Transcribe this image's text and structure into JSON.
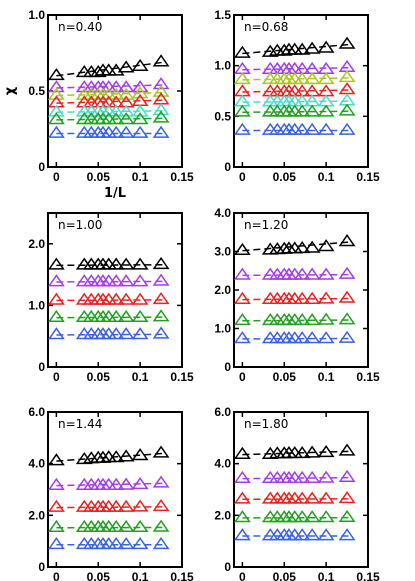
{
  "figure": {
    "colors": {
      "black": "#000000",
      "purple": "#a23cf0",
      "yellowgreen": "#a8c81e",
      "red": "#ee2020",
      "cyan": "#40e0c8",
      "green": "#22a020",
      "blue": "#3a62e6"
    }
  },
  "chart_data": [
    {
      "type": "scatter",
      "annotation": "n=0.40",
      "xlabel": "1/L",
      "ylabel": "χ",
      "xlim": [
        -0.01,
        0.15
      ],
      "ylim": [
        0,
        1.0
      ],
      "xticks": [
        0,
        0.05,
        0.1,
        0.15
      ],
      "xtick_labels": [
        "0",
        "0.05",
        "0.1",
        "0.15"
      ],
      "yticks": [
        0,
        0.5,
        1.0
      ],
      "ytick_labels": [
        "0",
        "0.5",
        "1.0"
      ],
      "x": [
        0.0,
        0.0333,
        0.0417,
        0.05,
        0.0556,
        0.0625,
        0.0714,
        0.0833,
        0.1,
        0.125
      ],
      "series": [
        {
          "color": "black",
          "values": [
            0.6,
            0.62,
            0.62,
            0.62,
            0.63,
            0.63,
            0.63,
            0.65,
            0.66,
            0.69
          ]
        },
        {
          "color": "purple",
          "values": [
            0.52,
            0.52,
            0.52,
            0.52,
            0.52,
            0.52,
            0.52,
            0.52,
            0.52,
            0.54
          ]
        },
        {
          "color": "yellowgreen",
          "values": [
            0.47,
            0.47,
            0.47,
            0.47,
            0.47,
            0.47,
            0.47,
            0.47,
            0.48,
            0.49
          ]
        },
        {
          "color": "red",
          "values": [
            0.42,
            0.42,
            0.42,
            0.42,
            0.42,
            0.42,
            0.42,
            0.42,
            0.43,
            0.44
          ]
        },
        {
          "color": "cyan",
          "values": [
            0.36,
            0.36,
            0.36,
            0.36,
            0.36,
            0.36,
            0.36,
            0.36,
            0.36,
            0.37
          ]
        },
        {
          "color": "green",
          "values": [
            0.31,
            0.31,
            0.31,
            0.31,
            0.31,
            0.31,
            0.31,
            0.31,
            0.31,
            0.32
          ]
        },
        {
          "color": "blue",
          "values": [
            0.22,
            0.22,
            0.22,
            0.22,
            0.22,
            0.22,
            0.22,
            0.22,
            0.22,
            0.22
          ]
        }
      ]
    },
    {
      "type": "scatter",
      "annotation": "n=0.68",
      "xlabel": "",
      "ylabel": "",
      "xlim": [
        -0.01,
        0.15
      ],
      "ylim": [
        0,
        1.5
      ],
      "xticks": [
        0,
        0.05,
        0.1,
        0.15
      ],
      "xtick_labels": [
        "0",
        "0.05",
        "0.1",
        "0.15"
      ],
      "yticks": [
        0,
        0.5,
        1.0,
        1.5
      ],
      "ytick_labels": [
        "0",
        "0.5",
        "1.0",
        "1.5"
      ],
      "x": [
        0.0,
        0.0333,
        0.0417,
        0.05,
        0.0556,
        0.0625,
        0.0714,
        0.0833,
        0.1,
        0.125
      ],
      "series": [
        {
          "color": "black",
          "values": [
            1.12,
            1.13,
            1.14,
            1.14,
            1.15,
            1.15,
            1.15,
            1.16,
            1.17,
            1.21
          ]
        },
        {
          "color": "purple",
          "values": [
            0.96,
            0.96,
            0.96,
            0.96,
            0.96,
            0.96,
            0.96,
            0.96,
            0.96,
            0.98
          ]
        },
        {
          "color": "yellowgreen",
          "values": [
            0.86,
            0.86,
            0.86,
            0.86,
            0.86,
            0.86,
            0.86,
            0.86,
            0.86,
            0.88
          ]
        },
        {
          "color": "red",
          "values": [
            0.74,
            0.74,
            0.74,
            0.74,
            0.74,
            0.74,
            0.74,
            0.74,
            0.74,
            0.76
          ]
        },
        {
          "color": "cyan",
          "values": [
            0.64,
            0.64,
            0.64,
            0.64,
            0.64,
            0.64,
            0.64,
            0.64,
            0.64,
            0.65
          ]
        },
        {
          "color": "green",
          "values": [
            0.54,
            0.54,
            0.54,
            0.54,
            0.54,
            0.54,
            0.54,
            0.54,
            0.54,
            0.55
          ]
        },
        {
          "color": "blue",
          "values": [
            0.36,
            0.36,
            0.36,
            0.36,
            0.36,
            0.36,
            0.36,
            0.36,
            0.36,
            0.36
          ]
        }
      ]
    },
    {
      "type": "scatter",
      "annotation": "n=1.00",
      "xlabel": "",
      "ylabel": "",
      "xlim": [
        -0.01,
        0.15
      ],
      "ylim": [
        0,
        2.5
      ],
      "xticks": [
        0,
        0.05,
        0.1,
        0.15
      ],
      "xtick_labels": [
        "0",
        "0.05",
        "0.1",
        "0.15"
      ],
      "yticks": [
        0,
        1.0,
        2.0
      ],
      "ytick_labels": [
        "0",
        "1.0",
        "2.0"
      ],
      "x": [
        0.0,
        0.0333,
        0.0417,
        0.05,
        0.0556,
        0.0625,
        0.0714,
        0.0833,
        0.1,
        0.125
      ],
      "series": [
        {
          "color": "black",
          "values": [
            1.65,
            1.65,
            1.65,
            1.65,
            1.65,
            1.65,
            1.65,
            1.65,
            1.65,
            1.66
          ]
        },
        {
          "color": "purple",
          "values": [
            1.38,
            1.38,
            1.38,
            1.38,
            1.38,
            1.38,
            1.38,
            1.38,
            1.38,
            1.39
          ]
        },
        {
          "color": "red",
          "values": [
            1.08,
            1.08,
            1.08,
            1.08,
            1.08,
            1.08,
            1.08,
            1.08,
            1.08,
            1.09
          ]
        },
        {
          "color": "green",
          "values": [
            0.8,
            0.8,
            0.8,
            0.8,
            0.8,
            0.8,
            0.8,
            0.8,
            0.8,
            0.81
          ]
        },
        {
          "color": "blue",
          "values": [
            0.52,
            0.52,
            0.52,
            0.52,
            0.52,
            0.52,
            0.52,
            0.52,
            0.52,
            0.53
          ]
        }
      ]
    },
    {
      "type": "scatter",
      "annotation": "n=1.20",
      "xlabel": "",
      "ylabel": "",
      "xlim": [
        -0.01,
        0.15
      ],
      "ylim": [
        0,
        4.0
      ],
      "xticks": [
        0,
        0.05,
        0.1,
        0.15
      ],
      "xtick_labels": [
        "0",
        "0.05",
        "0.1",
        "0.15"
      ],
      "yticks": [
        0,
        1.0,
        2.0,
        3.0,
        4.0
      ],
      "ytick_labels": [
        "0",
        "1.0",
        "2.0",
        "3.0",
        "4.0"
      ],
      "x": [
        0.0,
        0.0333,
        0.0417,
        0.05,
        0.0556,
        0.0625,
        0.0714,
        0.0833,
        0.1,
        0.125
      ],
      "series": [
        {
          "color": "black",
          "values": [
            3.02,
            3.03,
            3.04,
            3.05,
            3.06,
            3.06,
            3.07,
            3.08,
            3.12,
            3.25
          ]
        },
        {
          "color": "purple",
          "values": [
            2.38,
            2.38,
            2.38,
            2.38,
            2.38,
            2.38,
            2.38,
            2.38,
            2.38,
            2.4
          ]
        },
        {
          "color": "red",
          "values": [
            1.75,
            1.75,
            1.75,
            1.75,
            1.75,
            1.75,
            1.75,
            1.75,
            1.76,
            1.78
          ]
        },
        {
          "color": "green",
          "values": [
            1.2,
            1.2,
            1.2,
            1.2,
            1.2,
            1.2,
            1.2,
            1.2,
            1.21,
            1.22
          ]
        },
        {
          "color": "blue",
          "values": [
            0.73,
            0.73,
            0.73,
            0.73,
            0.73,
            0.73,
            0.73,
            0.73,
            0.73,
            0.74
          ]
        }
      ]
    },
    {
      "type": "scatter",
      "annotation": "n=1.44",
      "xlabel": "",
      "ylabel": "",
      "xlim": [
        -0.01,
        0.15
      ],
      "ylim": [
        0,
        6.0
      ],
      "xticks": [
        0,
        0.05,
        0.1,
        0.15
      ],
      "xtick_labels": [
        "0",
        "0.05",
        "0.1",
        "0.15"
      ],
      "yticks": [
        0,
        2.0,
        4.0,
        6.0
      ],
      "ytick_labels": [
        "0",
        "2.0",
        "4.0",
        "6.0"
      ],
      "x": [
        0.0,
        0.0333,
        0.0417,
        0.05,
        0.0556,
        0.0625,
        0.0714,
        0.0833,
        0.1,
        0.125
      ],
      "series": [
        {
          "color": "black",
          "values": [
            4.1,
            4.15,
            4.18,
            4.2,
            4.2,
            4.22,
            4.22,
            4.25,
            4.3,
            4.4
          ]
        },
        {
          "color": "purple",
          "values": [
            3.15,
            3.15,
            3.15,
            3.15,
            3.15,
            3.15,
            3.15,
            3.16,
            3.18,
            3.24
          ]
        },
        {
          "color": "red",
          "values": [
            2.3,
            2.3,
            2.3,
            2.3,
            2.3,
            2.3,
            2.3,
            2.3,
            2.31,
            2.33
          ]
        },
        {
          "color": "green",
          "values": [
            1.52,
            1.52,
            1.52,
            1.52,
            1.52,
            1.52,
            1.52,
            1.52,
            1.52,
            1.53
          ]
        },
        {
          "color": "blue",
          "values": [
            0.86,
            0.86,
            0.86,
            0.86,
            0.86,
            0.86,
            0.86,
            0.86,
            0.86,
            0.86
          ]
        }
      ]
    },
    {
      "type": "scatter",
      "annotation": "n=1.80",
      "xlabel": "",
      "ylabel": "",
      "xlim": [
        -0.01,
        0.15
      ],
      "ylim": [
        0,
        6.0
      ],
      "xticks": [
        0,
        0.05,
        0.1,
        0.15
      ],
      "xtick_labels": [
        "0",
        "0.05",
        "0.1",
        "0.15"
      ],
      "yticks": [
        0,
        2.0,
        4.0,
        6.0
      ],
      "ytick_labels": [
        "0",
        "2.0",
        "4.0",
        "6.0"
      ],
      "x": [
        0.0,
        0.0333,
        0.0417,
        0.05,
        0.0556,
        0.0625,
        0.0714,
        0.0833,
        0.1,
        0.125
      ],
      "series": [
        {
          "color": "black",
          "values": [
            4.35,
            4.35,
            4.37,
            4.37,
            4.38,
            4.38,
            4.38,
            4.4,
            4.42,
            4.48
          ]
        },
        {
          "color": "purple",
          "values": [
            3.42,
            3.42,
            3.42,
            3.42,
            3.42,
            3.42,
            3.42,
            3.42,
            3.43,
            3.46
          ]
        },
        {
          "color": "red",
          "values": [
            2.62,
            2.62,
            2.62,
            2.62,
            2.62,
            2.62,
            2.62,
            2.62,
            2.62,
            2.64
          ]
        },
        {
          "color": "green",
          "values": [
            1.9,
            1.9,
            1.9,
            1.9,
            1.9,
            1.9,
            1.9,
            1.9,
            1.9,
            1.91
          ]
        },
        {
          "color": "blue",
          "values": [
            1.2,
            1.2,
            1.2,
            1.2,
            1.2,
            1.2,
            1.2,
            1.2,
            1.2,
            1.2
          ]
        }
      ]
    }
  ]
}
